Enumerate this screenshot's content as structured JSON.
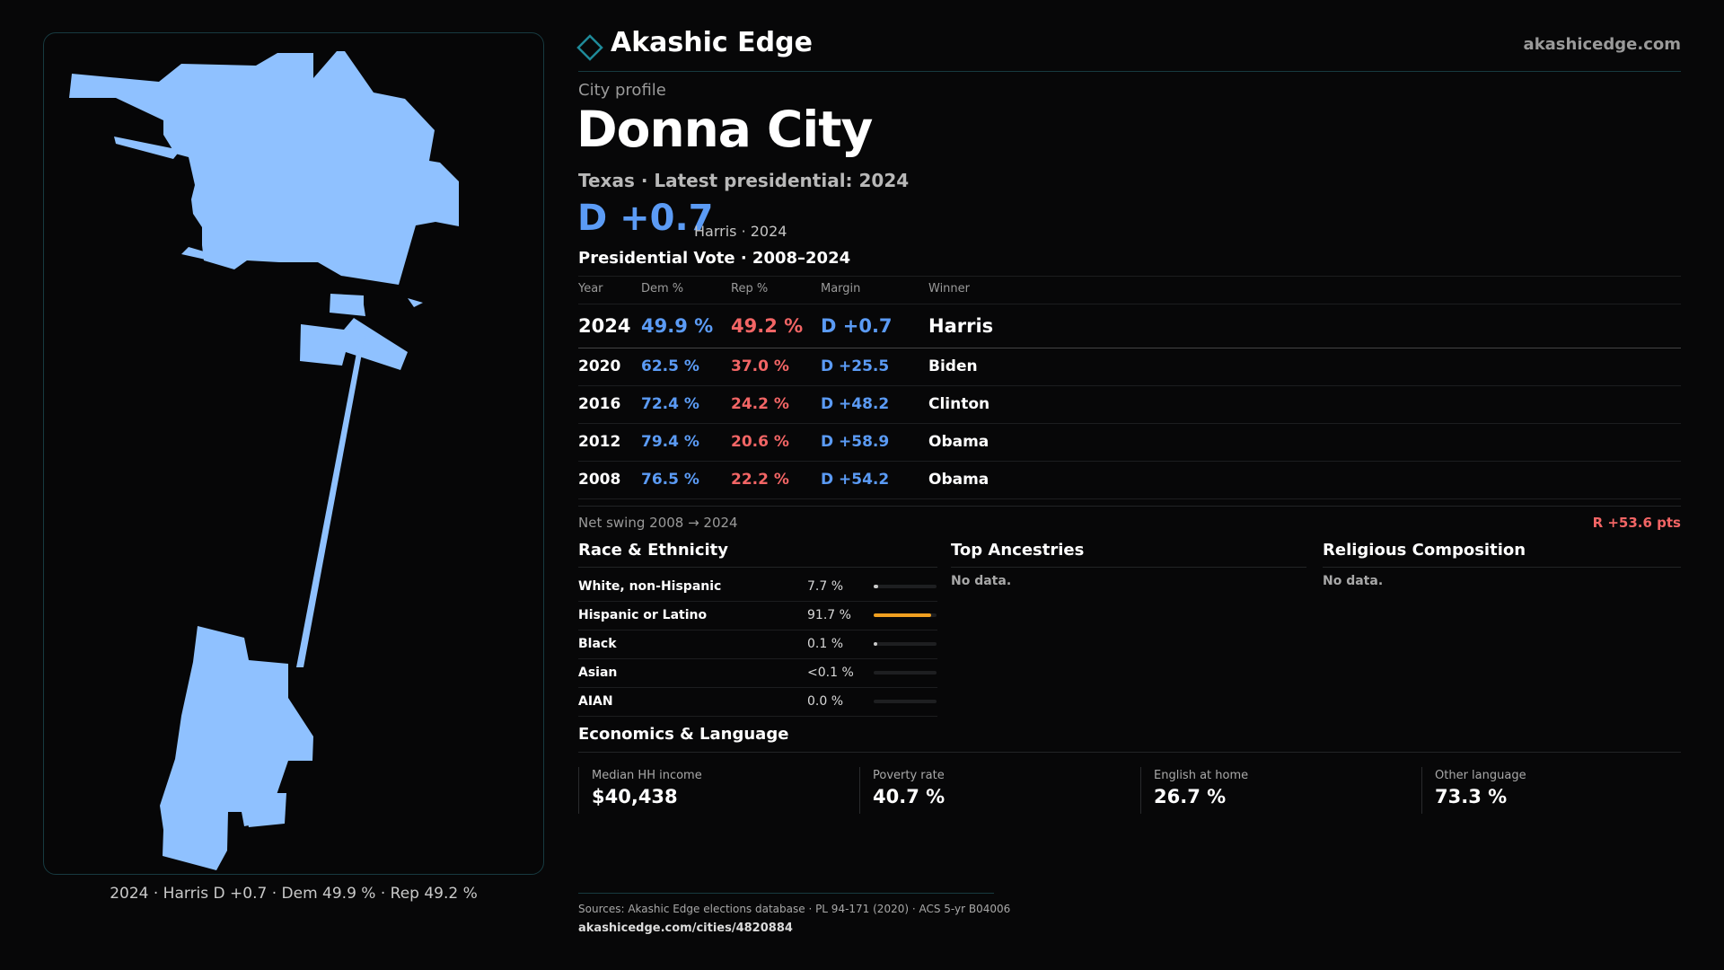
{
  "brand": "Akashic Edge",
  "site": "akashicedge.com",
  "eyebrow": "City profile",
  "city": "Donna City",
  "subtitle": "Texas · Latest presidential: 2024",
  "headline_margin": "D +0.7",
  "headline_note": "Harris · 2024",
  "vote_section_title": "Presidential Vote · 2008–2024",
  "table": {
    "headers": [
      "Year",
      "Dem %",
      "Rep %",
      "Margin",
      "Winner"
    ],
    "rows": [
      {
        "year": "2024",
        "dem": "49.9 %",
        "rep": "49.2 %",
        "margin": "D +0.7",
        "winner": "Harris"
      },
      {
        "year": "2020",
        "dem": "62.5 %",
        "rep": "37.0 %",
        "margin": "D +25.5",
        "winner": "Biden"
      },
      {
        "year": "2016",
        "dem": "72.4 %",
        "rep": "24.2 %",
        "margin": "D +48.2",
        "winner": "Clinton"
      },
      {
        "year": "2012",
        "dem": "79.4 %",
        "rep": "20.6 %",
        "margin": "D +58.9",
        "winner": "Obama"
      },
      {
        "year": "2008",
        "dem": "76.5 %",
        "rep": "22.2 %",
        "margin": "D +54.2",
        "winner": "Obama"
      }
    ]
  },
  "swing": {
    "label": "Net swing 2008 → 2024",
    "value": "R +53.6 pts"
  },
  "race": {
    "title": "Race & Ethnicity",
    "rows": [
      {
        "name": "White, non-Hispanic",
        "pct": "7.7 %",
        "share": 0.077,
        "color": "#c9c9c9"
      },
      {
        "name": "Hispanic or Latino",
        "pct": "91.7 %",
        "share": 0.917,
        "color": "#f0a020"
      },
      {
        "name": "Black",
        "pct": "0.1 %",
        "share": 0.001,
        "color": "#c9c9c9"
      },
      {
        "name": "Asian",
        "pct": "<0.1 %",
        "share": 0.0,
        "color": "#c9c9c9"
      },
      {
        "name": "AIAN",
        "pct": "0.0 %",
        "share": 0.0,
        "color": "#c9c9c9"
      }
    ]
  },
  "ancestries": {
    "title": "Top Ancestries",
    "text": "No data."
  },
  "religion": {
    "title": "Religious Composition",
    "text": "No data."
  },
  "economics": {
    "title": "Economics & Language",
    "stats": [
      {
        "label": "Median HH income",
        "value": "$40,438"
      },
      {
        "label": "Poverty rate",
        "value": "40.7 %"
      },
      {
        "label": "English at home",
        "value": "26.7 %"
      },
      {
        "label": "Other language",
        "value": "73.3 %"
      }
    ]
  },
  "map_caption": "2024 · Harris D +0.7 · Dem 49.9 % · Rep 49.2 %",
  "sources": "Sources: Akashic Edge elections database · PL 94-171 (2020) · ACS 5-yr B04006",
  "url": "akashicedge.com/cities/4820884",
  "colors": {
    "dem": "#5b9bf5",
    "rep": "#f26565",
    "map_fill": "#8fc1ff",
    "accent": "#173a40"
  }
}
